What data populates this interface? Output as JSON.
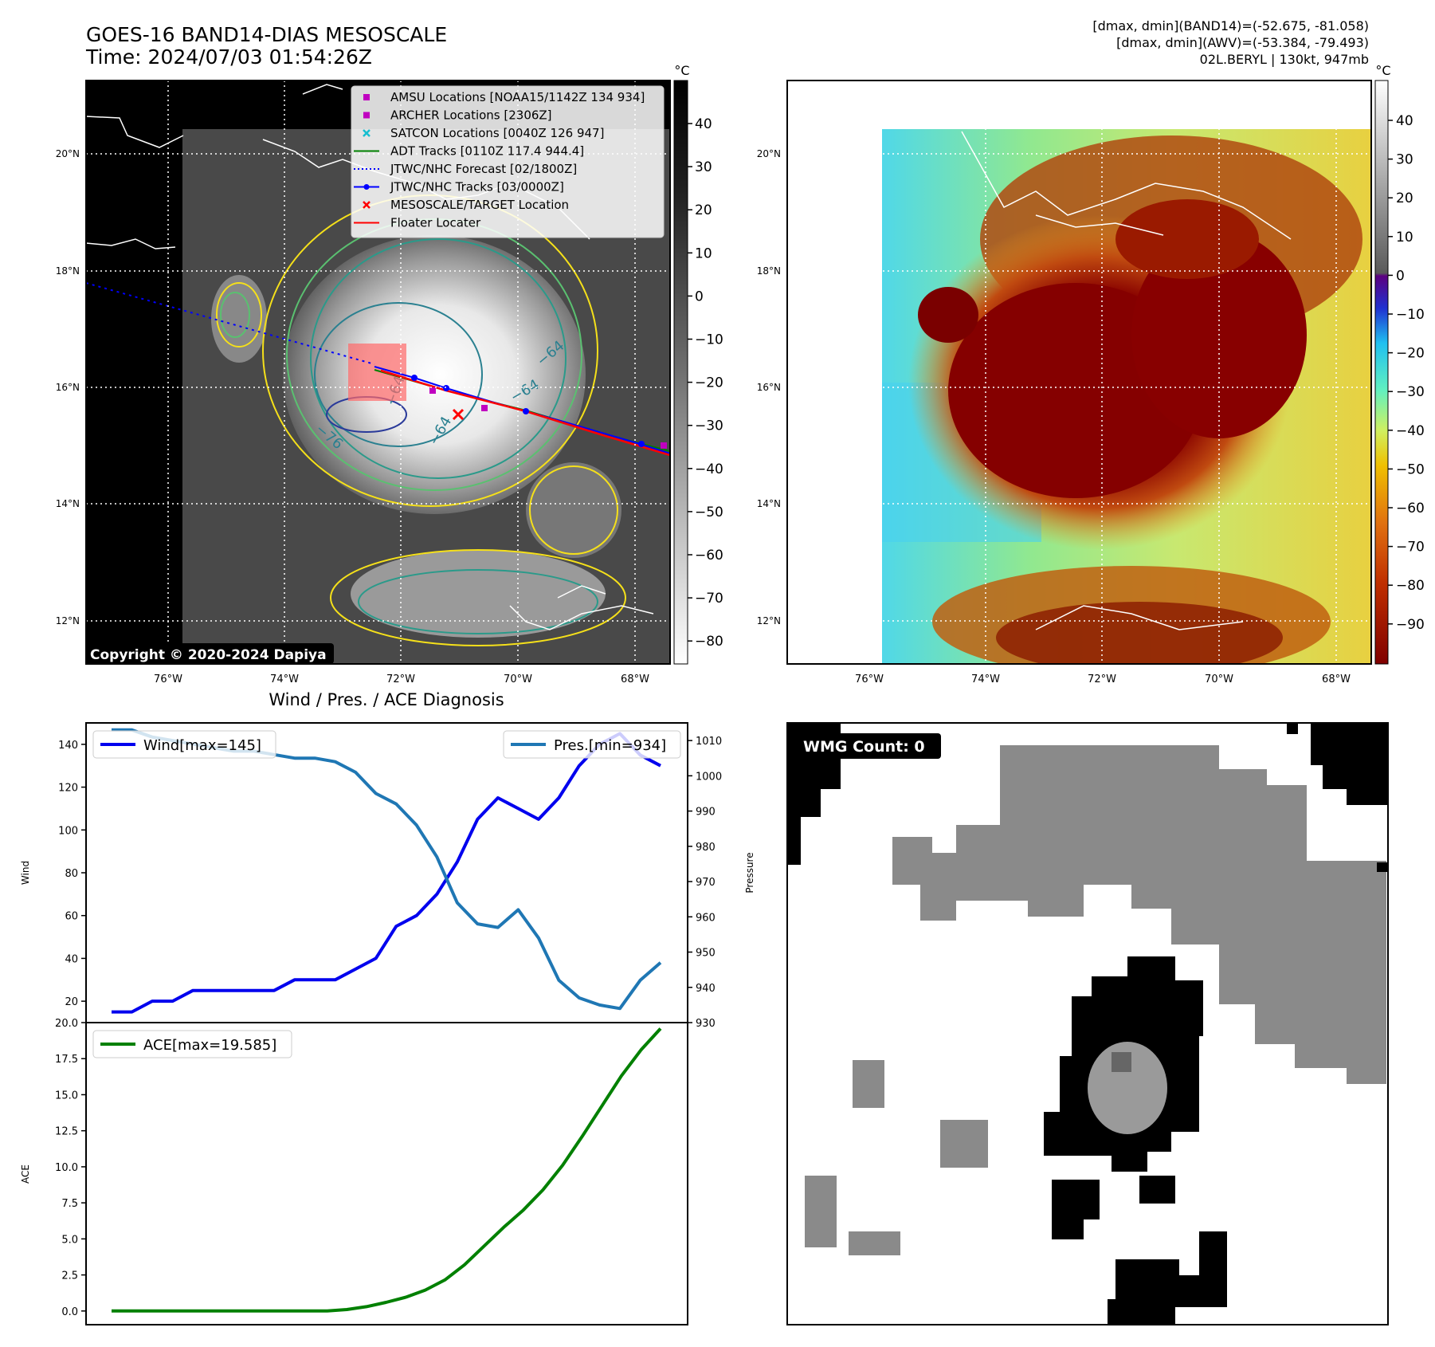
{
  "header": {
    "title_line1": "GOES-16 BAND14-DIAS MESOSCALE",
    "title_line2": "Time: 2024/07/03 01:54:26Z",
    "stats_line1": "[dmax, dmin](BAND14)=(-52.675, -81.058)",
    "stats_line2": "[dmax, dmin](AWV)=(-53.384, -79.493)",
    "stats_line3": "02L.BERYL | 130kt, 947mb",
    "copyright": "Copyright © 2020-2024 Dapiya"
  },
  "map_axes": {
    "lon_ticks": [
      "76°W",
      "74°W",
      "72°W",
      "70°W",
      "68°W"
    ],
    "lat_ticks": [
      "20°N",
      "18°N",
      "16°N",
      "14°N",
      "12°N"
    ]
  },
  "colorbars": {
    "unit": "°C",
    "left_ticks": [
      "40",
      "30",
      "20",
      "10",
      "0",
      "−10",
      "−20",
      "−30",
      "−40",
      "−50",
      "−60",
      "−70",
      "−80"
    ],
    "right_ticks": [
      "40",
      "30",
      "20",
      "10",
      "0",
      "−10",
      "−20",
      "−30",
      "−40",
      "−50",
      "−60",
      "−70",
      "−80",
      "−90"
    ]
  },
  "legend": [
    {
      "label": "AMSU Locations [NOAA15/1142Z 134 934]",
      "marker": "square",
      "color": "#c000c0"
    },
    {
      "label": "ARCHER Locations [2306Z]",
      "marker": "square",
      "color": "#c000c0"
    },
    {
      "label": "SATCON Locations [0040Z 126 947]",
      "marker": "x",
      "color": "#17becf"
    },
    {
      "label": "ADT Tracks [0110Z 117.4 944.4]",
      "marker": "line",
      "color": "#008000"
    },
    {
      "label": "JTWC/NHC Forecast [02/1800Z]",
      "marker": "dotted",
      "color": "#0000ff"
    },
    {
      "label": "JTWC/NHC Tracks [03/0000Z]",
      "marker": "line-dot",
      "color": "#0000ff"
    },
    {
      "label": "MESOSCALE/TARGET Location",
      "marker": "x",
      "color": "#ff0000"
    },
    {
      "label": "Floater Locater",
      "marker": "line",
      "color": "#ff0000"
    }
  ],
  "contour_labels": [
    "−64",
    "−64",
    "−76",
    "−64",
    "−64"
  ],
  "wind_pres": {
    "title": "Wind / Pres. / ACE Diagnosis",
    "left_label": "Wind",
    "right_label": "Pressure",
    "wind_legend": "Wind[max=145]",
    "pres_legend": "Pres.[min=934]"
  },
  "ace": {
    "ylabel": "ACE",
    "legend": "ACE[max=19.585]"
  },
  "wmg": {
    "label": "WMG Count: 0"
  },
  "colors": {
    "wind": "#0000ee",
    "pressure": "#1f77b4",
    "ace": "#008000",
    "floater": "#ff0000"
  },
  "chart_data": [
    {
      "type": "line",
      "series": [
        {
          "name": "Wind[max=145]",
          "axis": "left",
          "values": [
            15,
            15,
            20,
            20,
            25,
            25,
            25,
            25,
            25,
            30,
            30,
            30,
            35,
            40,
            55,
            60,
            70,
            85,
            105,
            115,
            110,
            105,
            115,
            130,
            140,
            145,
            135,
            130
          ]
        },
        {
          "name": "Pres.[min=934]",
          "axis": "right",
          "values": [
            1013,
            1013,
            1011,
            1010,
            1009,
            1008,
            1007,
            1007,
            1006,
            1005,
            1005,
            1004,
            1001,
            995,
            992,
            986,
            977,
            964,
            958,
            957,
            962,
            954,
            942,
            937,
            935,
            934,
            942,
            947
          ]
        }
      ],
      "ylim_left": [
        10,
        150
      ],
      "yticks_left": [
        20,
        40,
        60,
        80,
        100,
        120,
        140
      ],
      "ylim_right": [
        930,
        1015
      ],
      "yticks_right": [
        930,
        940,
        950,
        960,
        970,
        980,
        990,
        1000,
        1010
      ]
    },
    {
      "type": "line",
      "series": [
        {
          "name": "ACE[max=19.585]",
          "values": [
            0,
            0,
            0,
            0,
            0,
            0,
            0,
            0,
            0,
            0,
            0,
            0,
            0.1,
            0.3,
            0.6,
            0.95,
            1.45,
            2.15,
            3.2,
            4.5,
            5.8,
            7.0,
            8.4,
            10.1,
            12.1,
            14.2,
            16.3,
            18.1,
            19.585
          ]
        }
      ],
      "ylim": [
        -0.95,
        20.0
      ],
      "yticks": [
        0.0,
        2.5,
        5.0,
        7.5,
        10.0,
        12.5,
        15.0,
        17.5,
        20.0
      ]
    }
  ]
}
